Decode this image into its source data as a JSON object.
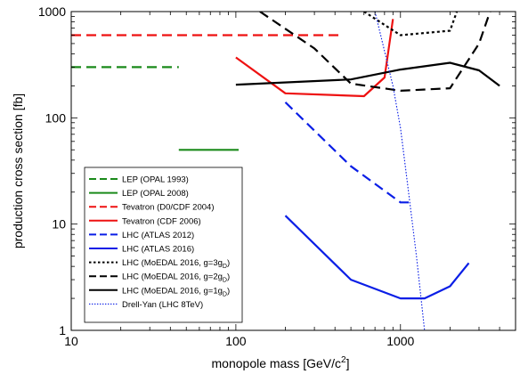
{
  "chart_data": {
    "type": "line",
    "title": "",
    "xlabel": "monopole mass [GeV/c",
    "xlabel_sup": "2",
    "xlabel_tail": "]",
    "ylabel": "production cross section [fb]",
    "xscale": "log",
    "yscale": "log",
    "xlim": [
      10,
      5000
    ],
    "ylim": [
      1,
      1000
    ],
    "grid": false,
    "legend_position": "bottom-left",
    "x_ticks": [
      {
        "value": 10,
        "label": "10"
      },
      {
        "value": 100,
        "label": "100"
      },
      {
        "value": 1000,
        "label": "1000"
      }
    ],
    "y_ticks": [
      {
        "value": 1,
        "label": "1"
      },
      {
        "value": 10,
        "label": "10"
      },
      {
        "value": 100,
        "label": "100"
      },
      {
        "value": 1000,
        "label": "1000"
      }
    ],
    "series": [
      {
        "name": "LEP (OPAL 1993)",
        "color": "#1a8a1a",
        "style": "dashed",
        "width": 2.2,
        "points": [
          [
            10,
            300
          ],
          [
            45,
            300
          ]
        ]
      },
      {
        "name": "LEP (OPAL 2008)",
        "color": "#1a8a1a",
        "style": "solid",
        "width": 2.2,
        "points": [
          [
            45,
            50
          ],
          [
            104,
            50
          ]
        ]
      },
      {
        "name": "Tevatron (D0/CDF 2004)",
        "color": "#ee1111",
        "style": "dashed",
        "width": 2.2,
        "points": [
          [
            10,
            600
          ],
          [
            420,
            600
          ]
        ]
      },
      {
        "name": "Tevatron (CDF 2006)",
        "color": "#ee1111",
        "style": "solid",
        "width": 2.2,
        "points": [
          [
            100,
            370
          ],
          [
            200,
            170
          ],
          [
            600,
            160
          ],
          [
            800,
            240
          ],
          [
            900,
            850
          ]
        ]
      },
      {
        "name": "LHC (ATLAS 2012)",
        "color": "#0a1ee6",
        "style": "dashed",
        "width": 2.2,
        "points": [
          [
            200,
            140
          ],
          [
            500,
            35
          ],
          [
            1000,
            16
          ],
          [
            1200,
            16
          ]
        ]
      },
      {
        "name": "LHC (ATLAS 2016)",
        "color": "#0a1ee6",
        "style": "solid",
        "width": 2.2,
        "points": [
          [
            200,
            12
          ],
          [
            500,
            3
          ],
          [
            1000,
            2
          ],
          [
            1400,
            2
          ],
          [
            2000,
            2.6
          ],
          [
            2600,
            4.3
          ]
        ]
      },
      {
        "name": "LHC (MoEDAL 2016, g=3g",
        "name_sub": "D",
        "name_tail": ")",
        "color": "#000000",
        "style": "dotted",
        "width": 2.2,
        "points": [
          [
            600,
            1000
          ],
          [
            1000,
            600
          ],
          [
            2000,
            660
          ],
          [
            2200,
            1000
          ]
        ]
      },
      {
        "name": "LHC (MoEDAL 2016, g=2g",
        "name_sub": "D",
        "name_tail": ")",
        "color": "#000000",
        "style": "dashed",
        "width": 2.2,
        "points": [
          [
            140,
            1000
          ],
          [
            300,
            450
          ],
          [
            500,
            210
          ],
          [
            1000,
            180
          ],
          [
            2000,
            190
          ],
          [
            3000,
            500
          ],
          [
            3500,
            1000
          ]
        ]
      },
      {
        "name": "LHC (MoEDAL 2016, g=1g",
        "name_sub": "D",
        "name_tail": ")",
        "color": "#000000",
        "style": "solid",
        "width": 2.2,
        "points": [
          [
            100,
            205
          ],
          [
            500,
            230
          ],
          [
            1000,
            285
          ],
          [
            2000,
            330
          ],
          [
            3000,
            280
          ],
          [
            4000,
            200
          ]
        ]
      },
      {
        "name": "Drell-Yan (LHC 8TeV)",
        "color": "#0a1ee6",
        "style": "fine-dotted",
        "width": 1.1,
        "points": [
          [
            700,
            1000
          ],
          [
            900,
            200
          ],
          [
            1000,
            80
          ],
          [
            1100,
            25
          ],
          [
            1250,
            5
          ],
          [
            1400,
            1
          ]
        ]
      }
    ]
  }
}
